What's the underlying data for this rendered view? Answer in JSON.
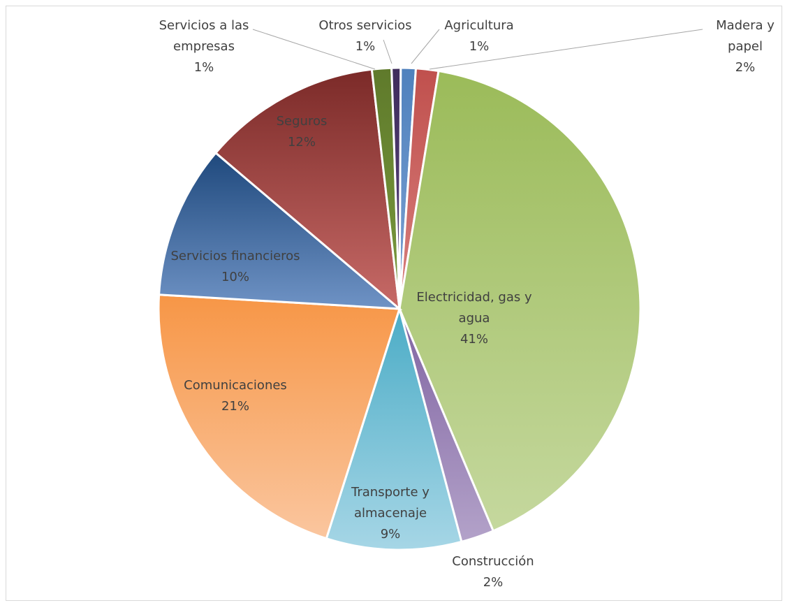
{
  "chart_data": {
    "type": "pie",
    "title": "",
    "slices": [
      {
        "label": "Agricultura",
        "percent_label": "1%",
        "value": 1.0,
        "color": "#4f81bd",
        "color_light": "#7ea3d4"
      },
      {
        "label": "Madera y papel",
        "percent_label": "2%",
        "value": 1.5,
        "color": "#c0504d",
        "color_light": "#d8807e"
      },
      {
        "label": "Electricidad, gas y agua",
        "percent_label": "41%",
        "value": 40.8,
        "color": "#9bbb59",
        "color_light": "#c5d89e"
      },
      {
        "label": "Construcción",
        "percent_label": "2%",
        "value": 2.2,
        "color": "#8064a2",
        "color_light": "#b3a2c9"
      },
      {
        "label": "Transporte y almacenaje",
        "percent_label": "9%",
        "value": 9.0,
        "color": "#4bacc6",
        "color_light": "#a6d6e6"
      },
      {
        "label": "Comunicaciones",
        "percent_label": "21%",
        "value": 20.9,
        "color": "#f79646",
        "color_light": "#fac69f"
      },
      {
        "label": "Servicios financieros",
        "percent_label": "10%",
        "value": 10.2,
        "color": "#1f497d",
        "color_light": "#6f93c5"
      },
      {
        "label": "Seguros",
        "percent_label": "12%",
        "value": 11.9,
        "color": "#7b2a28",
        "color_light": "#c76a67"
      },
      {
        "label": "Servicios a las empresas",
        "percent_label": "1%",
        "value": 1.3,
        "color": "#5f7a2b",
        "color_light": "#7a9a3e"
      },
      {
        "label": "Otros servicios",
        "percent_label": "1%",
        "value": 0.6,
        "color": "#3f2d5c",
        "color_light": "#5b4581"
      }
    ]
  }
}
